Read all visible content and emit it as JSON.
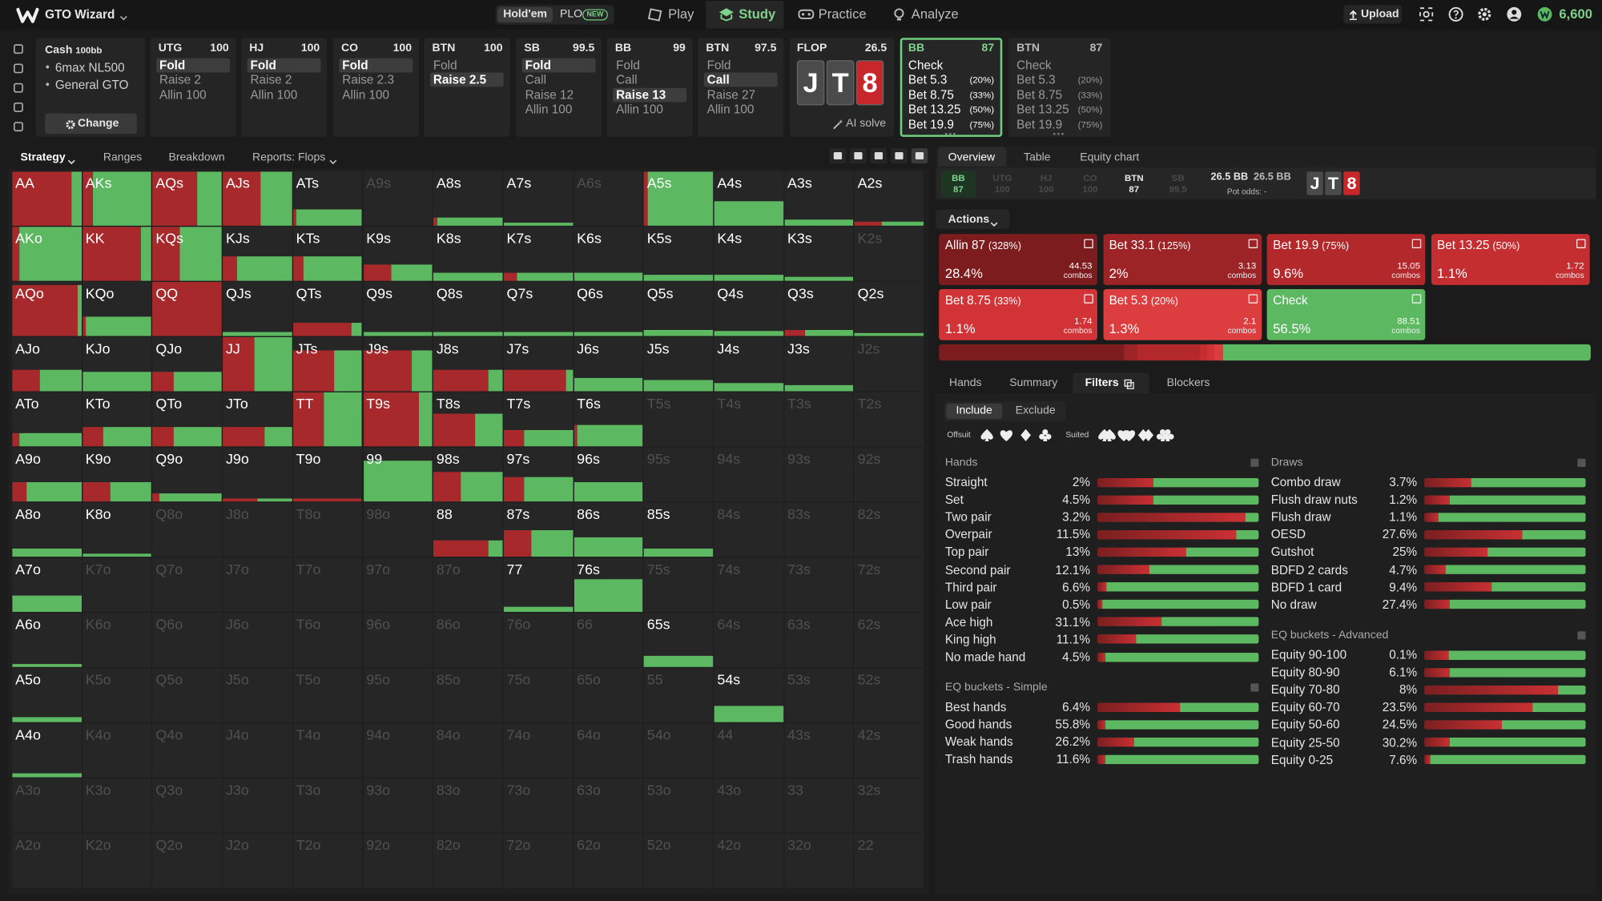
{
  "topbar": {
    "logo": "GTO Wizard",
    "game_tabs": [
      "Hold'em",
      "PLO"
    ],
    "new_badge": "NEW",
    "nav": [
      "Play",
      "Study",
      "Practice",
      "Analyze"
    ],
    "active_nav": 1,
    "upload": "Upload",
    "balance": "6,600"
  },
  "cash": {
    "title": "Cash",
    "stack": "100bb",
    "lines": [
      "6max NL500",
      "General GTO"
    ],
    "button": "Change"
  },
  "positions": [
    {
      "pos": "UTG",
      "stack": "100",
      "actions": [
        "Fold",
        "Raise 2",
        "Allin 100"
      ],
      "selected": 0
    },
    {
      "pos": "HJ",
      "stack": "100",
      "actions": [
        "Fold",
        "Raise 2",
        "Allin 100"
      ],
      "selected": 0
    },
    {
      "pos": "CO",
      "stack": "100",
      "actions": [
        "Fold",
        "Raise 2.3",
        "Allin 100"
      ],
      "selected": 0
    },
    {
      "pos": "BTN",
      "stack": "100",
      "actions": [
        "Fold",
        "Raise 2.5"
      ],
      "selected": 1
    },
    {
      "pos": "SB",
      "stack": "99.5",
      "actions": [
        "Fold",
        "Call",
        "Raise 12",
        "Allin 100"
      ],
      "selected": 0
    },
    {
      "pos": "BB",
      "stack": "99",
      "actions": [
        "Fold",
        "Call",
        "Raise 13",
        "Allin 100"
      ],
      "selected": 2
    },
    {
      "pos": "BTN",
      "stack": "97.5",
      "actions": [
        "Fold",
        "Call",
        "Raise 27",
        "Allin 100"
      ],
      "selected": 1
    }
  ],
  "flop": {
    "label": "FLOP",
    "pot": "26.5",
    "cards": [
      "J",
      "T",
      "8"
    ],
    "card_colors": [
      "#4b4b4b",
      "#4b4b4b",
      "#c7262b"
    ],
    "ai": "AI solve"
  },
  "decisions": [
    {
      "pos": "BB",
      "stack": "87",
      "active": true,
      "actions": [
        {
          "label": "Check"
        },
        {
          "label": "Bet 5.3",
          "size": "(20%)"
        },
        {
          "label": "Bet 8.75",
          "size": "(33%)"
        },
        {
          "label": "Bet 13.25",
          "size": "(50%)"
        },
        {
          "label": "Bet 19.9",
          "size": "(75%)"
        }
      ]
    },
    {
      "pos": "BTN",
      "stack": "87",
      "active": false,
      "actions": [
        {
          "label": "Check"
        },
        {
          "label": "Bet 5.3",
          "size": "(20%)"
        },
        {
          "label": "Bet 8.75",
          "size": "(33%)"
        },
        {
          "label": "Bet 13.25",
          "size": "(50%)"
        },
        {
          "label": "Bet 19.9",
          "size": "(75%)"
        }
      ]
    }
  ],
  "grid_tabs": [
    "Strategy",
    "Ranges",
    "Breakdown",
    "Reports: Flops"
  ],
  "hand_grid": {
    "hands": [
      [
        "AA",
        "AKs",
        "AQs",
        "AJs",
        "ATs",
        "A9s",
        "A8s",
        "A7s",
        "A6s",
        "A5s",
        "A4s",
        "A3s",
        "A2s"
      ],
      [
        "AKo",
        "KK",
        "KQs",
        "KJs",
        "KTs",
        "K9s",
        "K8s",
        "K7s",
        "K6s",
        "K5s",
        "K4s",
        "K3s",
        "K2s"
      ],
      [
        "AQo",
        "KQo",
        "QQ",
        "QJs",
        "QTs",
        "Q9s",
        "Q8s",
        "Q7s",
        "Q6s",
        "Q5s",
        "Q4s",
        "Q3s",
        "Q2s"
      ],
      [
        "AJo",
        "KJo",
        "QJo",
        "JJ",
        "JTs",
        "J9s",
        "J8s",
        "J7s",
        "J6s",
        "J5s",
        "J4s",
        "J3s",
        "J2s"
      ],
      [
        "ATo",
        "KTo",
        "QTo",
        "JTo",
        "TT",
        "T9s",
        "T8s",
        "T7s",
        "T6s",
        "T5s",
        "T4s",
        "T3s",
        "T2s"
      ],
      [
        "A9o",
        "K9o",
        "Q9o",
        "J9o",
        "T9o",
        "99",
        "98s",
        "97s",
        "96s",
        "95s",
        "94s",
        "93s",
        "92s"
      ],
      [
        "A8o",
        "K8o",
        "Q8o",
        "J8o",
        "T8o",
        "98o",
        "88",
        "87s",
        "86s",
        "85s",
        "84s",
        "83s",
        "82s"
      ],
      [
        "A7o",
        "K7o",
        "Q7o",
        "J7o",
        "T7o",
        "97o",
        "87o",
        "77",
        "76s",
        "75s",
        "74s",
        "73s",
        "72s"
      ],
      [
        "A6o",
        "K6o",
        "Q6o",
        "J6o",
        "T6o",
        "96o",
        "86o",
        "76o",
        "66",
        "65s",
        "64s",
        "63s",
        "62s"
      ],
      [
        "A5o",
        "K5o",
        "Q5o",
        "J5o",
        "T5o",
        "95o",
        "85o",
        "75o",
        "65o",
        "55",
        "54s",
        "53s",
        "52s"
      ],
      [
        "A4o",
        "K4o",
        "Q4o",
        "J4o",
        "T4o",
        "94o",
        "84o",
        "74o",
        "64o",
        "54o",
        "44",
        "43s",
        "42s"
      ],
      [
        "A3o",
        "K3o",
        "Q3o",
        "J3o",
        "T3o",
        "93o",
        "83o",
        "73o",
        "63o",
        "53o",
        "43o",
        "33",
        "32s"
      ],
      [
        "A2o",
        "K2o",
        "Q2o",
        "J2o",
        "T2o",
        "92o",
        "82o",
        "72o",
        "62o",
        "52o",
        "42o",
        "32o",
        "22"
      ]
    ],
    "weights": [
      [
        100,
        100,
        100,
        100,
        30,
        0,
        15,
        5,
        0,
        100,
        45,
        12,
        8
      ],
      [
        100,
        100,
        100,
        45,
        45,
        30,
        15,
        15,
        15,
        12,
        12,
        8,
        0
      ],
      [
        95,
        35,
        100,
        8,
        25,
        8,
        8,
        8,
        8,
        12,
        10,
        12,
        5
      ],
      [
        40,
        35,
        35,
        100,
        75,
        75,
        40,
        40,
        25,
        20,
        15,
        12,
        0
      ],
      [
        25,
        35,
        35,
        35,
        100,
        100,
        60,
        30,
        40,
        0,
        0,
        0,
        0
      ],
      [
        35,
        35,
        15,
        5,
        5,
        75,
        55,
        45,
        35,
        0,
        0,
        0,
        0
      ],
      [
        15,
        5,
        0,
        0,
        0,
        0,
        30,
        50,
        35,
        15,
        0,
        0,
        0
      ],
      [
        30,
        0,
        0,
        0,
        0,
        0,
        0,
        10,
        60,
        0,
        0,
        0,
        0
      ],
      [
        5,
        0,
        0,
        0,
        0,
        0,
        0,
        0,
        0,
        20,
        0,
        0,
        0
      ],
      [
        10,
        0,
        0,
        0,
        0,
        0,
        0,
        0,
        0,
        0,
        30,
        0,
        0
      ],
      [
        8,
        0,
        0,
        0,
        0,
        0,
        0,
        0,
        0,
        0,
        0,
        0,
        0
      ],
      [
        0,
        0,
        0,
        0,
        0,
        0,
        0,
        0,
        0,
        0,
        0,
        0,
        0
      ],
      [
        0,
        0,
        0,
        0,
        0,
        0,
        0,
        0,
        0,
        0,
        0,
        0,
        0
      ]
    ],
    "check": [
      [
        15,
        85,
        35,
        45,
        95,
        0,
        95,
        100,
        0,
        95,
        100,
        100,
        60
      ],
      [
        90,
        15,
        60,
        80,
        85,
        60,
        100,
        80,
        100,
        100,
        100,
        100,
        0
      ],
      [
        5,
        95,
        0,
        100,
        15,
        100,
        100,
        100,
        100,
        100,
        100,
        70,
        100
      ],
      [
        60,
        100,
        70,
        55,
        40,
        30,
        20,
        10,
        100,
        100,
        100,
        100,
        0
      ],
      [
        90,
        70,
        70,
        40,
        55,
        20,
        40,
        70,
        95,
        0,
        0,
        0,
        0
      ],
      [
        80,
        60,
        90,
        50,
        0,
        100,
        60,
        70,
        100,
        0,
        0,
        0,
        0
      ],
      [
        100,
        100,
        0,
        0,
        0,
        0,
        20,
        60,
        100,
        100,
        0,
        0,
        0
      ],
      [
        100,
        0,
        0,
        0,
        0,
        0,
        0,
        100,
        100,
        0,
        0,
        0,
        0
      ],
      [
        100,
        0,
        0,
        0,
        0,
        0,
        0,
        0,
        0,
        100,
        0,
        0,
        0
      ],
      [
        100,
        0,
        0,
        0,
        0,
        0,
        0,
        0,
        0,
        0,
        100,
        0,
        0
      ],
      [
        100,
        0,
        0,
        0,
        0,
        0,
        0,
        0,
        0,
        0,
        0,
        0,
        0
      ],
      [
        0,
        0,
        0,
        0,
        0,
        0,
        0,
        0,
        0,
        0,
        0,
        0,
        0
      ],
      [
        0,
        0,
        0,
        0,
        0,
        0,
        0,
        0,
        0,
        0,
        0,
        0,
        0
      ]
    ]
  },
  "overview_tabs": [
    "Overview",
    "Table",
    "Equity chart"
  ],
  "seat_strip": [
    {
      "pos": "BB",
      "stack": "87",
      "state": "active"
    },
    {
      "pos": "UTG",
      "stack": "100",
      "state": "folded"
    },
    {
      "pos": "HJ",
      "stack": "100",
      "state": "folded"
    },
    {
      "pos": "CO",
      "stack": "100",
      "state": "folded"
    },
    {
      "pos": "BTN",
      "stack": "87",
      "state": "live"
    },
    {
      "pos": "SB",
      "stack": "99.5",
      "state": "folded"
    }
  ],
  "pot": {
    "value": "26.5 BB",
    "value2": "26.5 BB",
    "odds": "Pot odds: -"
  },
  "actions_dropdown": "Actions",
  "combos_unit": "combos",
  "actions": [
    {
      "label": "Allin 87",
      "size": "(328%)",
      "freq": 28.4,
      "freq_label": "28.4%",
      "combos": "44.53",
      "color": "#7d1c1f"
    },
    {
      "label": "Bet 33.1",
      "size": "(125%)",
      "freq": 2,
      "freq_label": "2%",
      "combos": "3.13",
      "color": "#9c2326"
    },
    {
      "label": "Bet 19.9",
      "size": "(75%)",
      "freq": 9.6,
      "freq_label": "9.6%",
      "combos": "15.05",
      "color": "#b3282b"
    },
    {
      "label": "Bet 13.25",
      "size": "(50%)",
      "freq": 1.1,
      "freq_label": "1.1%",
      "combos": "1.72",
      "color": "#c52e31"
    },
    {
      "label": "Bet 8.75",
      "size": "(33%)",
      "freq": 1.1,
      "freq_label": "1.1%",
      "combos": "1.74",
      "color": "#d23336"
    },
    {
      "label": "Bet 5.3",
      "size": "(20%)",
      "freq": 1.3,
      "freq_label": "1.3%",
      "combos": "2.1",
      "color": "#dc3e40"
    },
    {
      "label": "Check",
      "freq": 56.5,
      "freq_label": "56.5%",
      "combos": "88.51",
      "color": "#5db862"
    }
  ],
  "filter_tabs": [
    "Hands",
    "Summary",
    "Filters",
    "Blockers"
  ],
  "active_filter_tab": 2,
  "include": "Include",
  "exclude": "Exclude",
  "offsuit": "Offsuit",
  "suited": "Suited",
  "left_groups": [
    {
      "title": "Hands",
      "rows": [
        {
          "name": "Straight",
          "pct": "2%",
          "check": 65
        },
        {
          "name": "Set",
          "pct": "4.5%",
          "check": 65
        },
        {
          "name": "Two pair",
          "pct": "3.2%",
          "check": 8
        },
        {
          "name": "Overpair",
          "pct": "11.5%",
          "check": 14
        },
        {
          "name": "Top pair",
          "pct": "13%",
          "check": 45
        },
        {
          "name": "Second pair",
          "pct": "12.1%",
          "check": 68
        },
        {
          "name": "Third pair",
          "pct": "6.6%",
          "check": 94
        },
        {
          "name": "Low pair",
          "pct": "0.5%",
          "check": 97
        },
        {
          "name": "Ace high",
          "pct": "31.1%",
          "check": 60
        },
        {
          "name": "King high",
          "pct": "11.1%",
          "check": 76
        },
        {
          "name": "No made hand",
          "pct": "4.5%",
          "check": 95
        }
      ]
    },
    {
      "title": "EQ buckets - Simple",
      "rows": [
        {
          "name": "Best hands",
          "pct": "6.4%",
          "check": 49
        },
        {
          "name": "Good hands",
          "pct": "55.8%",
          "check": 95
        },
        {
          "name": "Weak hands",
          "pct": "26.2%",
          "check": 77
        },
        {
          "name": "Trash hands",
          "pct": "11.6%",
          "check": 95
        }
      ]
    }
  ],
  "right_groups": [
    {
      "title": "Draws",
      "rows": [
        {
          "name": "Combo draw",
          "pct": "3.7%",
          "check": 71
        },
        {
          "name": "Flush draw nuts",
          "pct": "1.2%",
          "check": 84
        },
        {
          "name": "Flush draw",
          "pct": "1.1%",
          "check": 91
        },
        {
          "name": "OESD",
          "pct": "27.6%",
          "check": 39
        },
        {
          "name": "Gutshot",
          "pct": "25%",
          "check": 61
        },
        {
          "name": "BDFD 2 cards",
          "pct": "4.7%",
          "check": 87
        },
        {
          "name": "BDFD 1 card",
          "pct": "9.4%",
          "check": 58
        },
        {
          "name": "No draw",
          "pct": "27.4%",
          "check": 84
        }
      ]
    },
    {
      "title": "EQ buckets - Advanced",
      "rows": [
        {
          "name": "Equity 90-100",
          "pct": "0.1%",
          "check": 85
        },
        {
          "name": "Equity 80-90",
          "pct": "6.1%",
          "check": 84
        },
        {
          "name": "Equity 70-80",
          "pct": "8%",
          "check": 17
        },
        {
          "name": "Equity 60-70",
          "pct": "23.5%",
          "check": 33
        },
        {
          "name": "Equity 50-60",
          "pct": "24.5%",
          "check": 52
        },
        {
          "name": "Equity 25-50",
          "pct": "30.2%",
          "check": 84
        },
        {
          "name": "Equity 0-25",
          "pct": "7.6%",
          "check": 96
        }
      ]
    }
  ]
}
